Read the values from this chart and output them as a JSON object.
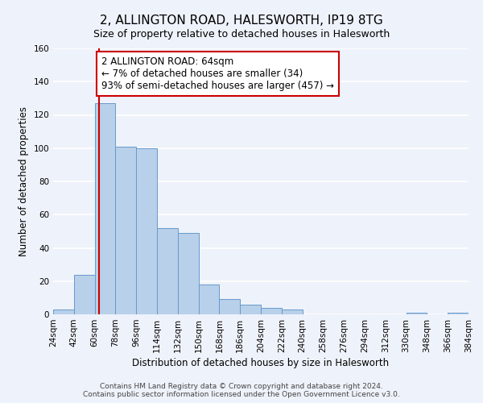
{
  "title": "2, ALLINGTON ROAD, HALESWORTH, IP19 8TG",
  "subtitle": "Size of property relative to detached houses in Halesworth",
  "bar_heights": [
    3,
    24,
    127,
    101,
    100,
    52,
    49,
    18,
    9,
    6,
    4,
    3,
    0,
    0,
    0,
    0,
    0,
    1,
    0,
    1
  ],
  "bin_edges": [
    24,
    42,
    60,
    78,
    96,
    114,
    132,
    150,
    168,
    186,
    204,
    222,
    240,
    258,
    276,
    294,
    312,
    330,
    348,
    366,
    384
  ],
  "tick_labels": [
    "24sqm",
    "42sqm",
    "60sqm",
    "78sqm",
    "96sqm",
    "114sqm",
    "132sqm",
    "150sqm",
    "168sqm",
    "186sqm",
    "204sqm",
    "222sqm",
    "240sqm",
    "258sqm",
    "276sqm",
    "294sqm",
    "312sqm",
    "330sqm",
    "348sqm",
    "366sqm",
    "384sqm"
  ],
  "bar_color": "#b8d0ea",
  "bar_edge_color": "#6699cc",
  "ylabel": "Number of detached properties",
  "xlabel": "Distribution of detached houses by size in Halesworth",
  "ylim": [
    0,
    160
  ],
  "yticks": [
    0,
    20,
    40,
    60,
    80,
    100,
    120,
    140,
    160
  ],
  "vline_x": 64,
  "vline_color": "#cc0000",
  "annotation_text": "2 ALLINGTON ROAD: 64sqm\n← 7% of detached houses are smaller (34)\n93% of semi-detached houses are larger (457) →",
  "annotation_box_color": "#ffffff",
  "annotation_box_edge": "#cc0000",
  "footer_line1": "Contains HM Land Registry data © Crown copyright and database right 2024.",
  "footer_line2": "Contains public sector information licensed under the Open Government Licence v3.0.",
  "background_color": "#eef2fa",
  "grid_color": "#ffffff",
  "title_fontsize": 11,
  "subtitle_fontsize": 9,
  "axis_label_fontsize": 8.5,
  "tick_fontsize": 7.5,
  "annotation_fontsize": 8.5,
  "footer_fontsize": 6.5
}
